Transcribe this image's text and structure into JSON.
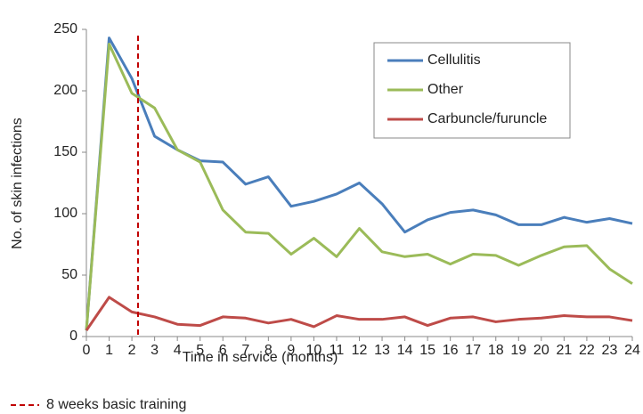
{
  "chart_data": {
    "type": "line",
    "x_label": "Time in service (months)",
    "y_label": "No. of skin infections",
    "x": [
      0,
      1,
      2,
      3,
      4,
      5,
      6,
      7,
      8,
      9,
      10,
      11,
      12,
      13,
      14,
      15,
      16,
      17,
      18,
      19,
      20,
      21,
      22,
      23,
      24
    ],
    "xlim": [
      0,
      24
    ],
    "xticks": [
      0,
      1,
      2,
      3,
      4,
      5,
      6,
      7,
      8,
      9,
      10,
      11,
      12,
      13,
      14,
      15,
      16,
      17,
      18,
      19,
      20,
      21,
      22,
      23,
      24
    ],
    "ylim": [
      0,
      250
    ],
    "yticks": [
      0,
      50,
      100,
      150,
      200,
      250
    ],
    "grid": false,
    "legend": "upper right",
    "series": [
      {
        "name": "Cellulitis",
        "color": "#4a7ebb",
        "values": [
          5,
          243,
          210,
          163,
          152,
          143,
          142,
          124,
          130,
          106,
          110,
          116,
          125,
          108,
          85,
          95,
          101,
          103,
          99,
          91,
          91,
          97,
          93,
          96,
          92
        ]
      },
      {
        "name": "Other",
        "color": "#9bbb59",
        "values": [
          5,
          238,
          198,
          186,
          152,
          142,
          103,
          85,
          84,
          67,
          80,
          65,
          88,
          69,
          65,
          67,
          59,
          67,
          66,
          58,
          66,
          73,
          74,
          55,
          43
        ]
      },
      {
        "name": "Carbuncle/furuncle",
        "color": "#be4b48",
        "values": [
          5,
          32,
          20,
          16,
          10,
          9,
          16,
          15,
          11,
          14,
          8,
          17,
          14,
          14,
          16,
          9,
          15,
          16,
          12,
          14,
          15,
          17,
          16,
          16,
          13
        ]
      }
    ],
    "reference_line": {
      "x": 2.27,
      "label": "8 weeks basic training",
      "color": "#c00000"
    }
  }
}
